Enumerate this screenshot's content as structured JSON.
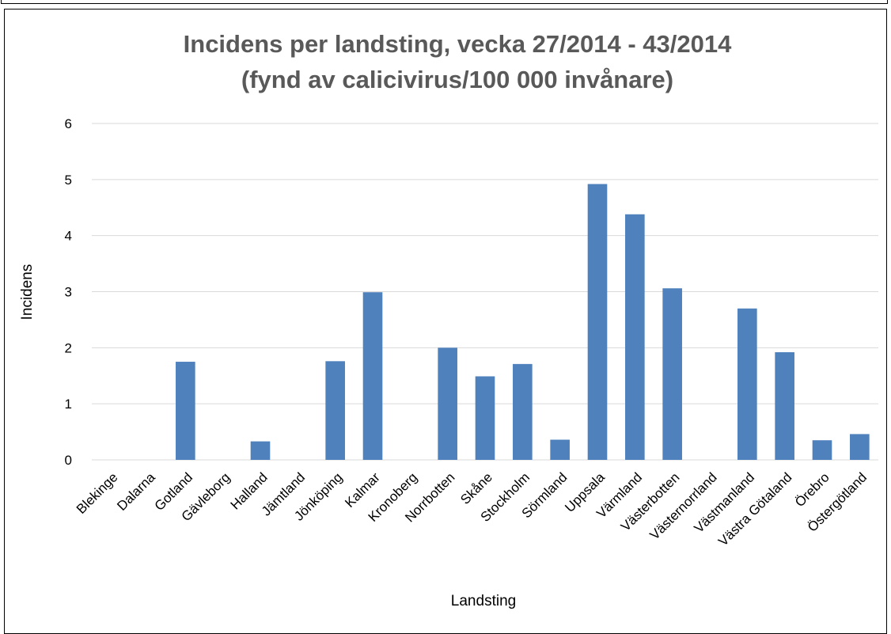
{
  "chart_data": {
    "type": "bar",
    "title": "Incidens per landsting, vecka 27/2014 - 43/2014",
    "subtitle": "(fynd av calicivirus/100 000 invånare)",
    "xlabel": "Landsting",
    "ylabel": "Incidens",
    "ylim": [
      0,
      6
    ],
    "yticks": [
      0,
      1,
      2,
      3,
      4,
      5,
      6
    ],
    "grid": true,
    "legend": "none",
    "bar_color": "#4F81BD",
    "grid_color": "#D9D9D9",
    "categories": [
      "Blekinge",
      "Dalarna",
      "Gotland",
      "Gävleborg",
      "Halland",
      "Jämtland",
      "Jönköping",
      "Kalmar",
      "Kronoberg",
      "Norrbotten",
      "Skåne",
      "Stockholm",
      "Sörmland",
      "Uppsala",
      "Värmland",
      "Västerbotten",
      "Västernorrland",
      "Västmanland",
      "Västra Götaland",
      "Örebro",
      "Östergötland"
    ],
    "values": [
      0,
      0,
      1.75,
      0,
      0.33,
      0,
      1.76,
      2.99,
      0,
      2.0,
      1.49,
      1.71,
      0.36,
      4.92,
      4.38,
      3.06,
      0,
      2.7,
      1.92,
      0.35,
      0.46
    ]
  }
}
